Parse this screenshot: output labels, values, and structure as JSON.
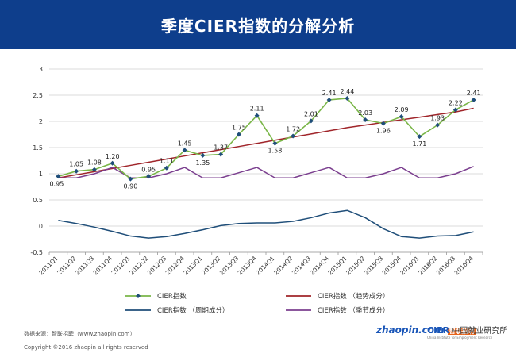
{
  "header": {
    "title": "季度CIER指数的分解分析"
  },
  "footer": {
    "source": "数据来源：智联招聘（www.zhaopin.com）",
    "copyright": "Copyright ©2016 zhaopin all rights reserved",
    "logo_zhaopin": "zhaopin.com",
    "logo_zhaopin_cn": "智联招聘",
    "logo_cier_brand": "CIER",
    "logo_cier_cn": "中国就业研究所",
    "logo_cier_en": "China Institute for Employment Research"
  },
  "colors": {
    "header_bg": "#0e3e8c",
    "cier": "#7ab648",
    "cier_marker": "#1f4e79",
    "trend": "#a0252a",
    "cycle": "#1f4e79",
    "seasonal": "#7b3f8f",
    "grid": "#cfcfcf"
  },
  "chart_data": {
    "type": "line",
    "categories": [
      "2011Q1",
      "2011Q2",
      "2011Q3",
      "2011Q4",
      "2012Q1",
      "2012Q2",
      "2012Q3",
      "2012Q4",
      "2013Q1",
      "2013Q2",
      "2013Q3",
      "2013Q4",
      "2014Q1",
      "2014Q2",
      "2014Q3",
      "2014Q4",
      "2015Q1",
      "2015Q2",
      "2015Q3",
      "2015Q4",
      "2016Q1",
      "2016Q2",
      "2016Q3",
      "2016Q4"
    ],
    "ylim": [
      -0.5,
      3
    ],
    "yticks": [
      -0.5,
      0,
      0.5,
      1,
      1.5,
      2,
      2.5,
      3
    ],
    "grid": true,
    "legend_position": "bottom",
    "series": [
      {
        "name": "CIER指数",
        "color": "#7ab648",
        "marker": "diamond",
        "labels": true,
        "values": [
          0.95,
          1.05,
          1.08,
          1.2,
          0.9,
          0.95,
          1.11,
          1.45,
          1.35,
          1.37,
          1.75,
          2.11,
          1.58,
          1.72,
          2.01,
          2.41,
          2.44,
          2.03,
          1.96,
          2.09,
          1.71,
          1.93,
          2.22,
          2.41
        ]
      },
      {
        "name": "CIER指数 （趋势成分）",
        "color": "#a0252a",
        "values": [
          0.92,
          0.98,
          1.04,
          1.1,
          1.16,
          1.22,
          1.28,
          1.34,
          1.4,
          1.46,
          1.52,
          1.58,
          1.64,
          1.7,
          1.76,
          1.82,
          1.88,
          1.93,
          1.98,
          2.03,
          2.08,
          2.13,
          2.18,
          2.25
        ]
      },
      {
        "name": "CIER指数 （周期成分）",
        "color": "#1f4e79",
        "values": [
          0.11,
          0.05,
          -0.02,
          -0.1,
          -0.19,
          -0.23,
          -0.2,
          -0.14,
          -0.07,
          0.01,
          0.05,
          0.06,
          0.06,
          0.09,
          0.16,
          0.25,
          0.3,
          0.16,
          -0.05,
          -0.2,
          -0.23,
          -0.19,
          -0.18,
          -0.11
        ]
      },
      {
        "name": "CIER指数 （季节成分）",
        "color": "#7b3f8f",
        "values": [
          0.92,
          0.92,
          1.0,
          1.12,
          0.92,
          0.92,
          1.0,
          1.12,
          0.92,
          0.92,
          1.02,
          1.12,
          0.92,
          0.92,
          1.02,
          1.12,
          0.92,
          0.92,
          1.0,
          1.12,
          0.92,
          0.92,
          1.0,
          1.14
        ]
      }
    ]
  }
}
